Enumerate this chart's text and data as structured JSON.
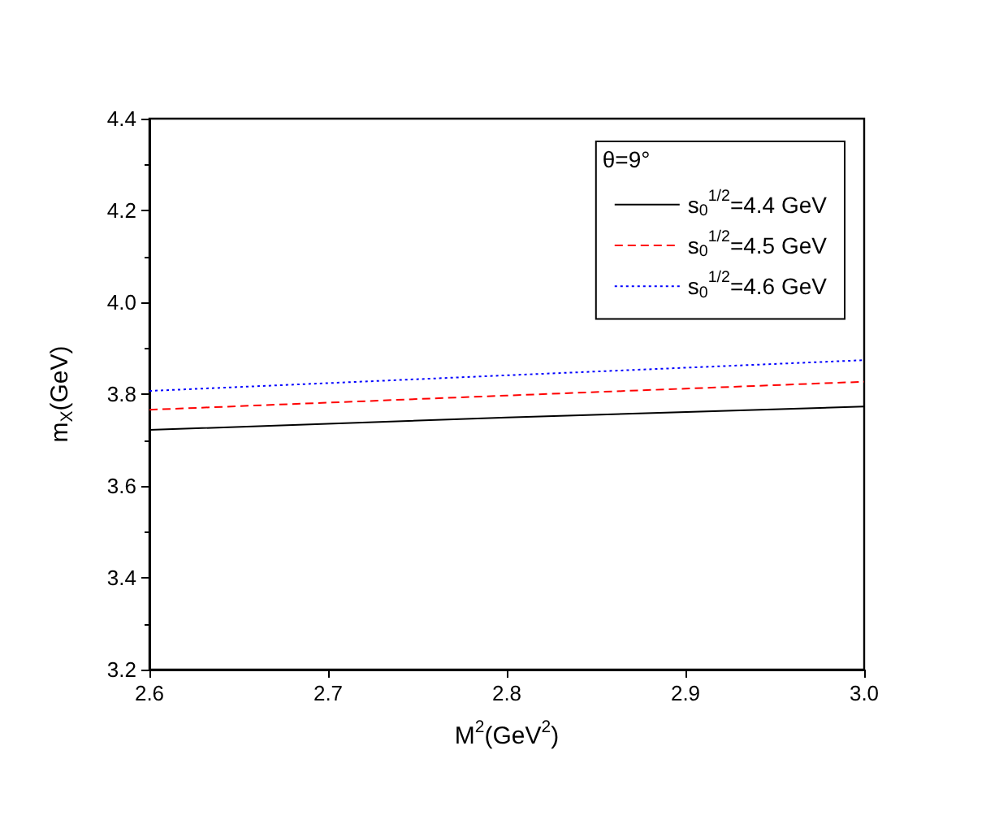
{
  "chart_data": {
    "type": "line",
    "xlabel": "M$^{2}$(GeV$^{2}$)",
    "ylabel": "m$_{X}$(GeV)",
    "legend_title": "θ=9°",
    "x": [
      2.6,
      2.8,
      3.0
    ],
    "series": [
      {
        "name": "s$_{0}$$^{1/2}$=4.4 GeV",
        "color": "#000000",
        "line_style": "solid",
        "values": [
          3.722,
          3.749,
          3.773
        ]
      },
      {
        "name": "s$_{0}$$^{1/2}$=4.5 GeV",
        "color": "#ff0000",
        "line_style": "dashed",
        "values": [
          3.766,
          3.797,
          3.827
        ]
      },
      {
        "name": "s$_{0}$$^{1/2}$=4.6 GeV",
        "color": "#0000ff",
        "line_style": "dotted",
        "values": [
          3.807,
          3.841,
          3.874
        ]
      }
    ],
    "xlim": [
      2.6,
      3.0
    ],
    "xticks": [
      2.6,
      2.7,
      2.8,
      2.9,
      {
        "value": 3,
        "label": "3.0"
      }
    ],
    "ylim": [
      3.2,
      4.4
    ],
    "yticks": [
      3.2,
      3.4,
      3.6,
      3.8,
      {
        "value": 4,
        "label": "4.0"
      },
      4.2,
      4.4
    ],
    "grid": false,
    "legend": "top right",
    "marker": "none"
  }
}
